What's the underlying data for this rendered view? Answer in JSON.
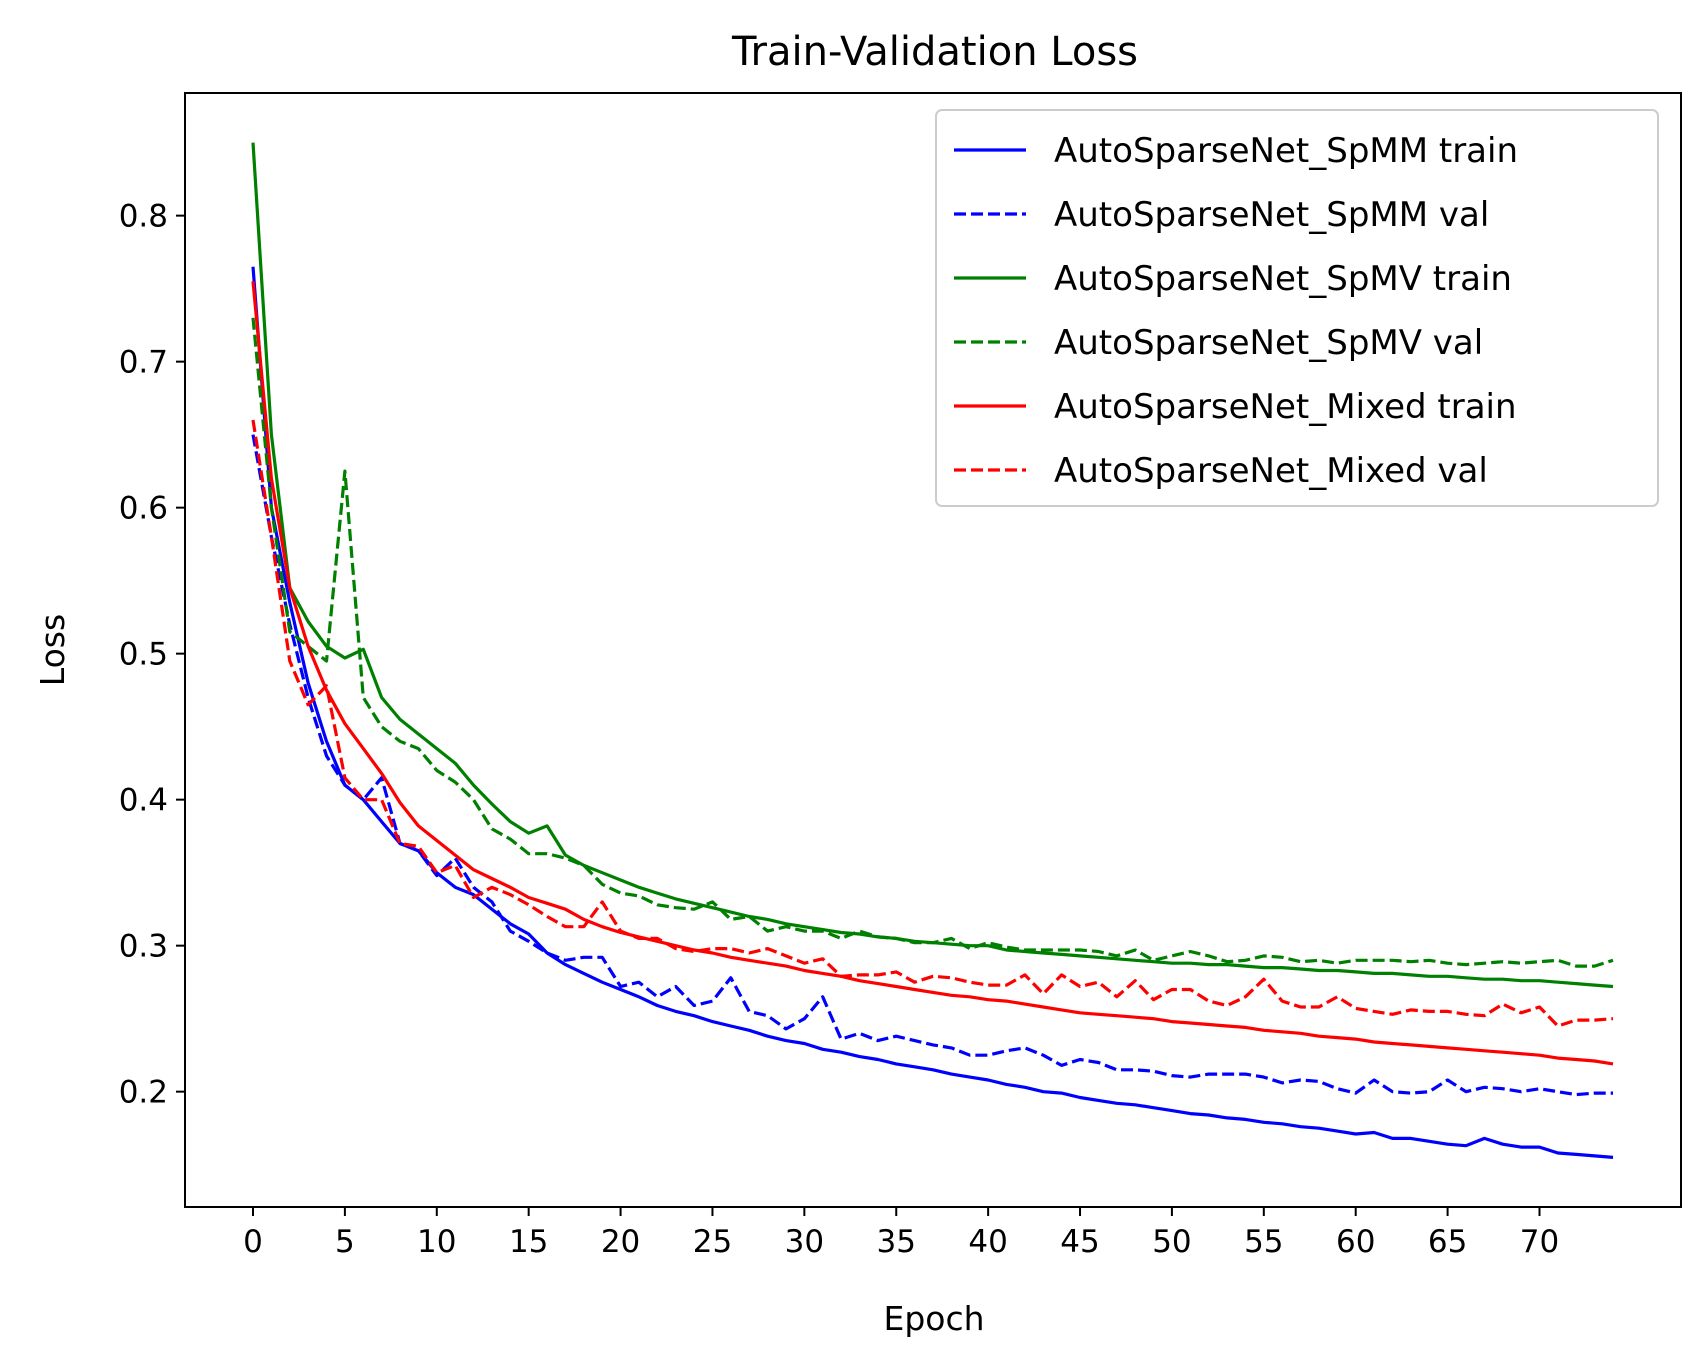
{
  "chart_data": {
    "type": "line",
    "title": "Train-Validation Loss",
    "xlabel": "Epoch",
    "ylabel": "Loss",
    "xlim": [
      -3.7,
      77.7
    ],
    "ylim": [
      0.121,
      0.884
    ],
    "xticks": [
      0,
      5,
      10,
      15,
      20,
      25,
      30,
      35,
      40,
      45,
      50,
      55,
      60,
      65,
      70
    ],
    "yticks": [
      0.2,
      0.3,
      0.4,
      0.5,
      0.6,
      0.7,
      0.8
    ],
    "ytick_labels": [
      "0.2",
      "0.3",
      "0.4",
      "0.5",
      "0.6",
      "0.7",
      "0.8"
    ],
    "grid": false,
    "legend_position": "top-right",
    "x": [
      0,
      1,
      2,
      3,
      4,
      5,
      6,
      7,
      8,
      9,
      10,
      11,
      12,
      13,
      14,
      15,
      16,
      17,
      18,
      19,
      20,
      21,
      22,
      23,
      24,
      25,
      26,
      27,
      28,
      29,
      30,
      31,
      32,
      33,
      34,
      35,
      36,
      37,
      38,
      39,
      40,
      41,
      42,
      43,
      44,
      45,
      46,
      47,
      48,
      49,
      50,
      51,
      52,
      53,
      54,
      55,
      56,
      57,
      58,
      59,
      60,
      61,
      62,
      63,
      64,
      65,
      66,
      67,
      68,
      69,
      70,
      71,
      72,
      73,
      74
    ],
    "series": [
      {
        "name": "AutoSparseNet_SpMM train",
        "color": "#0000ff",
        "dash": "solid",
        "values": [
          0.765,
          0.6,
          0.535,
          0.48,
          0.44,
          0.41,
          0.4,
          0.385,
          0.37,
          0.365,
          0.35,
          0.34,
          0.335,
          0.325,
          0.315,
          0.308,
          0.295,
          0.287,
          0.281,
          0.275,
          0.27,
          0.265,
          0.259,
          0.255,
          0.252,
          0.248,
          0.245,
          0.242,
          0.238,
          0.235,
          0.233,
          0.229,
          0.227,
          0.224,
          0.222,
          0.219,
          0.217,
          0.215,
          0.212,
          0.21,
          0.208,
          0.205,
          0.203,
          0.2,
          0.199,
          0.196,
          0.194,
          0.192,
          0.191,
          0.189,
          0.187,
          0.185,
          0.184,
          0.182,
          0.181,
          0.179,
          0.178,
          0.176,
          0.175,
          0.173,
          0.171,
          0.172,
          0.168,
          0.168,
          0.166,
          0.164,
          0.163,
          0.168,
          0.164,
          0.162,
          0.162,
          0.158,
          0.157,
          0.156,
          0.155
        ]
      },
      {
        "name": "AutoSparseNet_SpMM val",
        "color": "#0000ff",
        "dash": "dashed",
        "values": [
          0.65,
          0.58,
          0.52,
          0.47,
          0.43,
          0.41,
          0.4,
          0.415,
          0.37,
          0.365,
          0.348,
          0.36,
          0.34,
          0.33,
          0.31,
          0.303,
          0.295,
          0.29,
          0.292,
          0.292,
          0.272,
          0.275,
          0.265,
          0.272,
          0.259,
          0.262,
          0.278,
          0.255,
          0.252,
          0.243,
          0.25,
          0.265,
          0.236,
          0.24,
          0.235,
          0.238,
          0.235,
          0.232,
          0.23,
          0.225,
          0.225,
          0.228,
          0.23,
          0.225,
          0.218,
          0.222,
          0.22,
          0.215,
          0.215,
          0.214,
          0.211,
          0.21,
          0.212,
          0.212,
          0.212,
          0.21,
          0.206,
          0.208,
          0.207,
          0.202,
          0.199,
          0.208,
          0.2,
          0.199,
          0.2,
          0.208,
          0.2,
          0.203,
          0.202,
          0.2,
          0.202,
          0.2,
          0.198,
          0.199,
          0.199
        ]
      },
      {
        "name": "AutoSparseNet_SpMV train",
        "color": "#008000",
        "dash": "solid",
        "values": [
          0.85,
          0.65,
          0.545,
          0.522,
          0.505,
          0.497,
          0.503,
          0.47,
          0.455,
          0.445,
          0.435,
          0.425,
          0.41,
          0.397,
          0.385,
          0.377,
          0.382,
          0.362,
          0.355,
          0.35,
          0.345,
          0.34,
          0.336,
          0.332,
          0.329,
          0.326,
          0.323,
          0.32,
          0.318,
          0.315,
          0.313,
          0.311,
          0.309,
          0.308,
          0.306,
          0.305,
          0.303,
          0.302,
          0.301,
          0.3,
          0.3,
          0.297,
          0.296,
          0.295,
          0.294,
          0.293,
          0.292,
          0.291,
          0.29,
          0.289,
          0.288,
          0.288,
          0.287,
          0.287,
          0.286,
          0.285,
          0.285,
          0.284,
          0.283,
          0.283,
          0.282,
          0.281,
          0.281,
          0.28,
          0.279,
          0.279,
          0.278,
          0.277,
          0.277,
          0.276,
          0.276,
          0.275,
          0.274,
          0.273,
          0.272
        ]
      },
      {
        "name": "AutoSparseNet_SpMV val",
        "color": "#008000",
        "dash": "dashed",
        "values": [
          0.73,
          0.6,
          0.515,
          0.505,
          0.495,
          0.625,
          0.47,
          0.45,
          0.44,
          0.435,
          0.42,
          0.412,
          0.4,
          0.38,
          0.373,
          0.363,
          0.363,
          0.36,
          0.355,
          0.342,
          0.336,
          0.334,
          0.328,
          0.326,
          0.325,
          0.33,
          0.318,
          0.32,
          0.31,
          0.313,
          0.31,
          0.31,
          0.305,
          0.31,
          0.306,
          0.305,
          0.302,
          0.302,
          0.305,
          0.298,
          0.302,
          0.299,
          0.297,
          0.297,
          0.297,
          0.297,
          0.296,
          0.293,
          0.297,
          0.29,
          0.293,
          0.296,
          0.293,
          0.289,
          0.29,
          0.293,
          0.292,
          0.289,
          0.29,
          0.288,
          0.29,
          0.29,
          0.29,
          0.289,
          0.29,
          0.288,
          0.287,
          0.288,
          0.289,
          0.288,
          0.289,
          0.29,
          0.286,
          0.286,
          0.29
        ]
      },
      {
        "name": "AutoSparseNet_Mixed train",
        "color": "#ff0000",
        "dash": "solid",
        "values": [
          0.755,
          0.62,
          0.545,
          0.505,
          0.475,
          0.452,
          0.435,
          0.418,
          0.398,
          0.382,
          0.372,
          0.362,
          0.352,
          0.346,
          0.34,
          0.333,
          0.329,
          0.325,
          0.318,
          0.313,
          0.309,
          0.306,
          0.303,
          0.3,
          0.297,
          0.295,
          0.292,
          0.29,
          0.288,
          0.286,
          0.283,
          0.281,
          0.279,
          0.276,
          0.274,
          0.272,
          0.27,
          0.268,
          0.266,
          0.265,
          0.263,
          0.262,
          0.26,
          0.258,
          0.256,
          0.254,
          0.253,
          0.252,
          0.251,
          0.25,
          0.248,
          0.247,
          0.246,
          0.245,
          0.244,
          0.242,
          0.241,
          0.24,
          0.238,
          0.237,
          0.236,
          0.234,
          0.233,
          0.232,
          0.231,
          0.23,
          0.229,
          0.228,
          0.227,
          0.226,
          0.225,
          0.223,
          0.222,
          0.221,
          0.219
        ]
      },
      {
        "name": "AutoSparseNet_Mixed val",
        "color": "#ff0000",
        "dash": "dashed",
        "values": [
          0.66,
          0.58,
          0.495,
          0.465,
          0.478,
          0.415,
          0.4,
          0.4,
          0.37,
          0.368,
          0.35,
          0.355,
          0.333,
          0.34,
          0.335,
          0.328,
          0.32,
          0.313,
          0.313,
          0.33,
          0.31,
          0.305,
          0.305,
          0.298,
          0.296,
          0.298,
          0.298,
          0.295,
          0.298,
          0.293,
          0.288,
          0.291,
          0.279,
          0.28,
          0.28,
          0.282,
          0.275,
          0.279,
          0.278,
          0.275,
          0.273,
          0.273,
          0.28,
          0.267,
          0.28,
          0.272,
          0.275,
          0.265,
          0.276,
          0.263,
          0.27,
          0.27,
          0.262,
          0.259,
          0.265,
          0.277,
          0.262,
          0.258,
          0.258,
          0.265,
          0.257,
          0.255,
          0.253,
          0.256,
          0.255,
          0.255,
          0.253,
          0.252,
          0.26,
          0.254,
          0.258,
          0.245,
          0.249,
          0.249,
          0.25
        ]
      }
    ]
  }
}
